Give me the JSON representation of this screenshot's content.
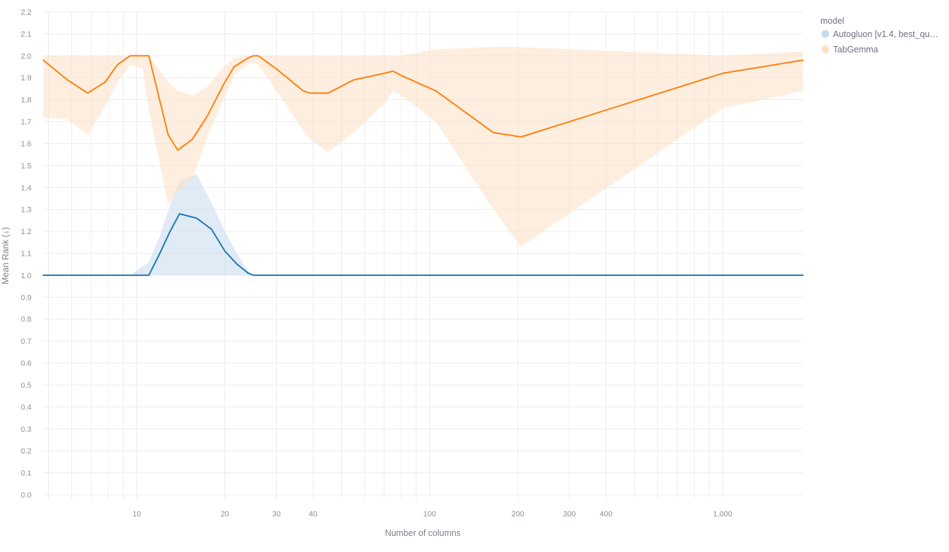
{
  "chart_data": {
    "type": "line",
    "xlabel": "Number of columns",
    "ylabel": "Mean Rank (↓)",
    "x_scale": "log",
    "xlim": [
      4.8,
      1880
    ],
    "ylim": [
      0,
      2.2
    ],
    "x_ticks": [
      10,
      20,
      30,
      40,
      100,
      200,
      300,
      400,
      1000
    ],
    "x_tick_labels": [
      "10",
      "20",
      "30",
      "40",
      "100",
      "200",
      "300",
      "400",
      "1,000"
    ],
    "y_ticks": [
      0.0,
      0.1,
      0.2,
      0.3,
      0.4,
      0.5,
      0.6,
      0.7,
      0.8,
      0.9,
      1.0,
      1.1,
      1.2,
      1.3,
      1.4,
      1.5,
      1.6,
      1.7,
      1.8,
      1.9,
      2.0,
      2.1,
      2.2
    ],
    "y_tick_labels": [
      "0.0",
      "0.1",
      "0.2",
      "0.3",
      "0.4",
      "0.5",
      "0.6",
      "0.7",
      "0.8",
      "0.9",
      "1.0",
      "1.1",
      "1.2",
      "1.3",
      "1.4",
      "1.5",
      "1.6",
      "1.7",
      "1.8",
      "1.9",
      "2.0",
      "2.1",
      "2.2"
    ],
    "grid": true,
    "legend": {
      "title": "model",
      "placement": "right",
      "entries": [
        "Autogluon [v1.4, best_qu…",
        "TabGemma"
      ]
    },
    "series": [
      {
        "name": "Autogluon [v1.4, best_qu…",
        "color": "#1f77b4",
        "band_color": "#c6dbef",
        "x": [
          4.8,
          9.5,
          11,
          12,
          13,
          14,
          16,
          18,
          20,
          22,
          24,
          25,
          26,
          30,
          1880
        ],
        "y": [
          1.0,
          1.0,
          1.0,
          1.1,
          1.2,
          1.28,
          1.26,
          1.21,
          1.11,
          1.05,
          1.01,
          1.0,
          1.0,
          1.0,
          1.0
        ],
        "band_upper": [
          1.0,
          1.0,
          1.06,
          1.18,
          1.32,
          1.43,
          1.46,
          1.33,
          1.2,
          1.1,
          1.02,
          1.0,
          1.0,
          1.0,
          1.0
        ],
        "band_lower": [
          1.0,
          1.0,
          1.0,
          1.0,
          1.0,
          1.0,
          1.0,
          1.0,
          1.0,
          1.0,
          1.0,
          1.0,
          1.0,
          1.0,
          1.0
        ]
      },
      {
        "name": "TabGemma",
        "color": "#ff7f0e",
        "band_color": "#fde0c5",
        "x": [
          4.8,
          5.8,
          6.8,
          7.8,
          8.6,
          9.5,
          10.5,
          11,
          12.8,
          13.8,
          15.5,
          17.5,
          19.8,
          21.5,
          24,
          25,
          26,
          30,
          37,
          39,
          45,
          55,
          70,
          75,
          80,
          105,
          165,
          205,
          1000,
          1880
        ],
        "y": [
          1.98,
          1.89,
          1.83,
          1.88,
          1.96,
          2.0,
          2.0,
          2.0,
          1.64,
          1.57,
          1.62,
          1.73,
          1.87,
          1.95,
          1.99,
          2.0,
          2.0,
          1.94,
          1.84,
          1.83,
          1.83,
          1.89,
          1.92,
          1.93,
          1.91,
          1.84,
          1.65,
          1.63,
          1.92,
          1.98
        ],
        "band_upper": [
          2.0,
          2.0,
          2.0,
          2.0,
          2.0,
          2.0,
          2.0,
          2.0,
          1.88,
          1.84,
          1.82,
          1.86,
          1.95,
          1.99,
          2.0,
          2.0,
          2.0,
          2.0,
          2.0,
          2.0,
          2.0,
          2.0,
          2.0,
          2.0,
          2.0,
          2.03,
          2.04,
          2.04,
          2.0,
          2.02
        ],
        "band_lower": [
          1.72,
          1.71,
          1.64,
          1.77,
          1.88,
          1.96,
          1.94,
          1.75,
          1.32,
          1.38,
          1.44,
          1.64,
          1.8,
          1.91,
          1.96,
          1.97,
          1.96,
          1.84,
          1.66,
          1.62,
          1.56,
          1.65,
          1.78,
          1.84,
          1.82,
          1.7,
          1.3,
          1.13,
          1.76,
          1.84
        ]
      }
    ]
  }
}
